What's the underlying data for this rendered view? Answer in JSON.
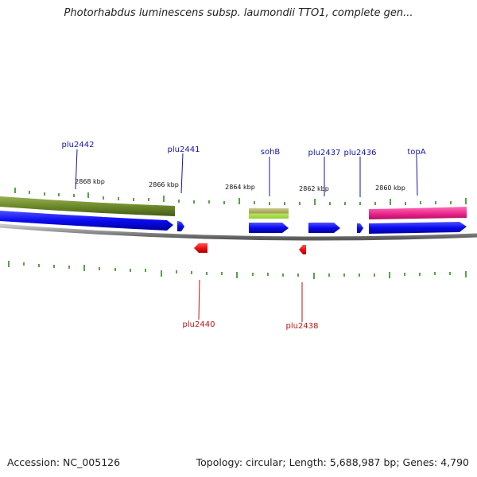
{
  "title": "Photorhabdus luminescens subsp. laumondii TTO1, complete gen...",
  "footer": {
    "accession": "Accession: NC_005126",
    "topology": "Topology: circular; Length: 5,688,987 bp; Genes: 4,790"
  },
  "colors": {
    "gene_forward": "#0a0af0",
    "gene_reverse": "#ee1111",
    "label_forward": "#1515a8",
    "label_reverse": "#b81414",
    "ticks": "#2e8a1e",
    "backbone": "#8c8c8c",
    "feature_olive": "#6b8a2a",
    "feature_sohB": "#b3b35a",
    "feature_topA": "#e8208a"
  },
  "scale_labels": [
    "2868 kbp",
    "2866 kbp",
    "2864 kbp",
    "2862 kbp",
    "2860 kbp"
  ],
  "forward_gene_labels": [
    "plu2442",
    "plu2441",
    "sohB",
    "plu2437",
    "plu2436",
    "topA"
  ],
  "reverse_gene_labels": [
    "plu2440",
    "plu2438"
  ]
}
